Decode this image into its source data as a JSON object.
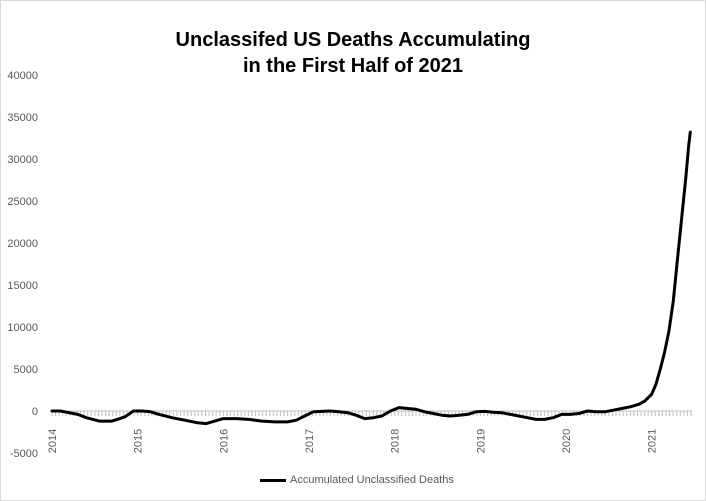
{
  "chart_data": {
    "type": "line",
    "title_line1": "Unclassifed US Deaths Accumulating",
    "title_line2": "in the First Half of 2021",
    "xlabel": "",
    "ylabel": "",
    "ylim": [
      -5000,
      40000
    ],
    "xlim": [
      2014.0,
      2021.47
    ],
    "y_ticks": [
      -5000,
      0,
      5000,
      10000,
      15000,
      20000,
      25000,
      30000,
      35000,
      40000
    ],
    "x_tick_labels": [
      "2014",
      "2015",
      "2016",
      "2017",
      "2018",
      "2019",
      "2020",
      "2021"
    ],
    "grid": false,
    "legend_position": "bottom",
    "series": [
      {
        "name": "Accumulated Unclassified Deaths",
        "color": "#000000",
        "points": [
          [
            2014.0,
            0
          ],
          [
            2014.1,
            0
          ],
          [
            2014.2,
            -200
          ],
          [
            2014.3,
            -400
          ],
          [
            2014.4,
            -800
          ],
          [
            2014.55,
            -1200
          ],
          [
            2014.7,
            -1200
          ],
          [
            2014.85,
            -700
          ],
          [
            2014.95,
            0
          ],
          [
            2015.05,
            0
          ],
          [
            2015.15,
            -100
          ],
          [
            2015.25,
            -400
          ],
          [
            2015.4,
            -800
          ],
          [
            2015.55,
            -1100
          ],
          [
            2015.7,
            -1400
          ],
          [
            2015.8,
            -1500
          ],
          [
            2015.9,
            -1200
          ],
          [
            2016.0,
            -900
          ],
          [
            2016.15,
            -900
          ],
          [
            2016.3,
            -1000
          ],
          [
            2016.45,
            -1200
          ],
          [
            2016.6,
            -1300
          ],
          [
            2016.75,
            -1300
          ],
          [
            2016.85,
            -1100
          ],
          [
            2016.95,
            -600
          ],
          [
            2017.05,
            -100
          ],
          [
            2017.15,
            -50
          ],
          [
            2017.25,
            0
          ],
          [
            2017.35,
            -100
          ],
          [
            2017.45,
            -200
          ],
          [
            2017.55,
            -500
          ],
          [
            2017.65,
            -900
          ],
          [
            2017.75,
            -800
          ],
          [
            2017.85,
            -600
          ],
          [
            2017.95,
            0
          ],
          [
            2018.05,
            400
          ],
          [
            2018.15,
            300
          ],
          [
            2018.25,
            200
          ],
          [
            2018.35,
            -100
          ],
          [
            2018.45,
            -300
          ],
          [
            2018.55,
            -500
          ],
          [
            2018.65,
            -600
          ],
          [
            2018.75,
            -500
          ],
          [
            2018.85,
            -400
          ],
          [
            2018.95,
            -100
          ],
          [
            2019.05,
            -50
          ],
          [
            2019.15,
            -150
          ],
          [
            2019.25,
            -200
          ],
          [
            2019.35,
            -400
          ],
          [
            2019.45,
            -600
          ],
          [
            2019.55,
            -800
          ],
          [
            2019.65,
            -1000
          ],
          [
            2019.75,
            -1000
          ],
          [
            2019.85,
            -800
          ],
          [
            2019.95,
            -400
          ],
          [
            2020.05,
            -400
          ],
          [
            2020.15,
            -300
          ],
          [
            2020.25,
            0
          ],
          [
            2020.35,
            -100
          ],
          [
            2020.45,
            -100
          ],
          [
            2020.55,
            100
          ],
          [
            2020.65,
            300
          ],
          [
            2020.75,
            500
          ],
          [
            2020.85,
            800
          ],
          [
            2020.92,
            1200
          ],
          [
            2021.0,
            2000
          ],
          [
            2021.05,
            3200
          ],
          [
            2021.1,
            5000
          ],
          [
            2021.15,
            7000
          ],
          [
            2021.2,
            9500
          ],
          [
            2021.25,
            13000
          ],
          [
            2021.3,
            18000
          ],
          [
            2021.35,
            23000
          ],
          [
            2021.4,
            28000
          ],
          [
            2021.43,
            31500
          ],
          [
            2021.45,
            33200
          ]
        ]
      }
    ]
  }
}
